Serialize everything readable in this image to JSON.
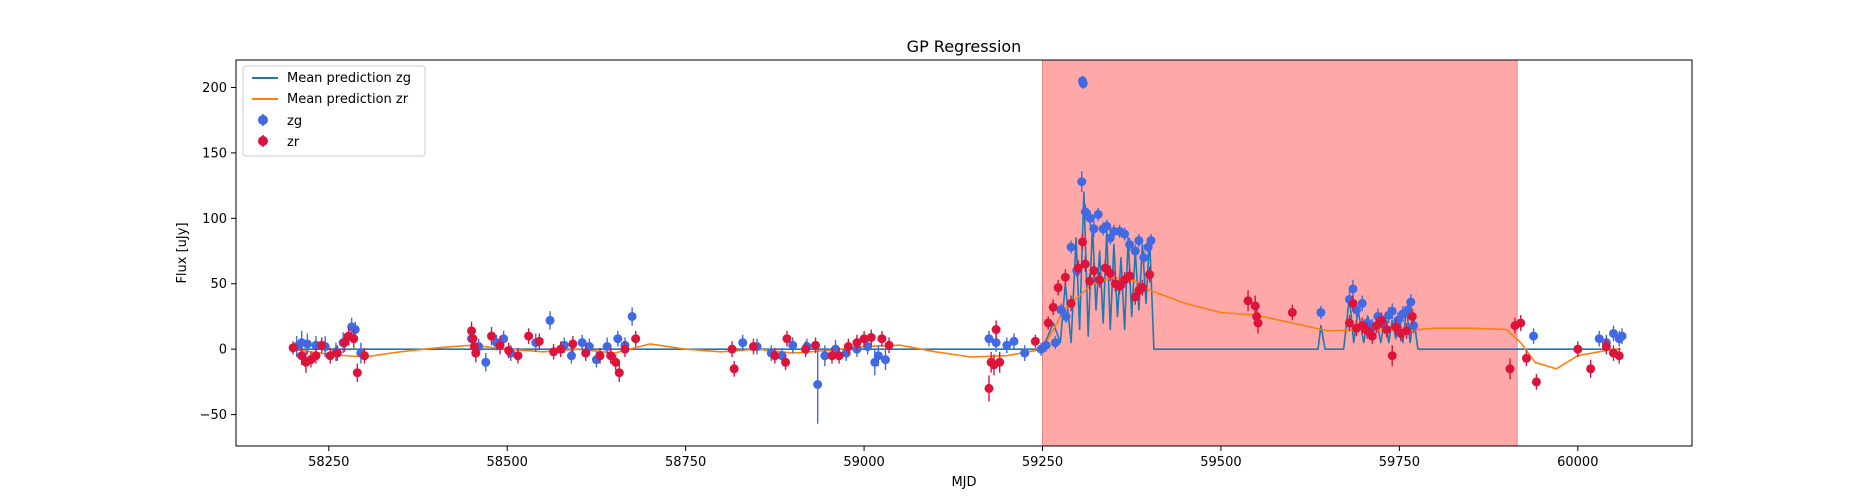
{
  "chart_data": {
    "type": "scatter",
    "title": "GP Regression",
    "xlabel": "MJD",
    "ylabel": "Flux [uJy]",
    "xlim": [
      58120,
      60160
    ],
    "ylim": [
      -74,
      221
    ],
    "xticks": [
      58250,
      58500,
      58750,
      59000,
      59250,
      59500,
      59750,
      60000
    ],
    "yticks": [
      -50,
      0,
      50,
      100,
      150,
      200
    ],
    "grid": false,
    "legend_position": "top-left",
    "highlight_region": {
      "x": [
        59250,
        59915
      ],
      "color": "#ffa8a8"
    },
    "colors": {
      "zg_points": "#4169e1",
      "zr_points": "#dc143c",
      "zg_line": "#1f77b4",
      "zr_line": "#ff7f0e"
    },
    "legend": [
      "Mean prediction zg",
      "Mean prediction zr",
      "zg",
      "zr"
    ],
    "series": [
      {
        "name": "Mean prediction zg",
        "kind": "line",
        "x": [
          58200,
          59250,
          59265,
          59275,
          59282,
          59290,
          59297,
          59302,
          59308,
          59314,
          59320,
          59325,
          59330,
          59335,
          59340,
          59345,
          59350,
          59355,
          59360,
          59365,
          59370,
          59375,
          59380,
          59385,
          59390,
          59395,
          59400,
          59406,
          59636,
          59640,
          59646,
          59655,
          59672,
          59680,
          59686,
          59692,
          59700,
          59706,
          59712,
          59718,
          59724,
          59730,
          59735,
          59740,
          59745,
          59750,
          59755,
          59760,
          59765,
          59770,
          59776,
          60060
        ],
        "y": [
          0,
          0,
          20,
          5,
          50,
          5,
          85,
          15,
          120,
          10,
          95,
          30,
          75,
          20,
          90,
          15,
          80,
          25,
          70,
          15,
          85,
          25,
          75,
          30,
          80,
          35,
          85,
          0,
          0,
          18,
          0,
          0,
          0,
          40,
          5,
          30,
          5,
          25,
          8,
          22,
          5,
          25,
          5,
          22,
          8,
          25,
          5,
          32,
          5,
          25,
          0,
          0
        ]
      },
      {
        "name": "Mean prediction zr",
        "kind": "line",
        "x": [
          58200,
          58250,
          58300,
          58350,
          58400,
          58450,
          58500,
          58550,
          58600,
          58650,
          58700,
          58750,
          58800,
          58850,
          58900,
          58950,
          59000,
          59050,
          59100,
          59150,
          59200,
          59250,
          59280,
          59320,
          59350,
          59380,
          59400,
          59450,
          59500,
          59550,
          59600,
          59650,
          59700,
          59750,
          59800,
          59850,
          59900,
          59920,
          59940,
          59970,
          60000,
          60050,
          60060
        ],
        "y": [
          0,
          -4,
          -6,
          -2,
          1,
          3,
          0,
          -2,
          0,
          -3,
          4,
          0,
          -2,
          0,
          -3,
          -1,
          2,
          3,
          -2,
          -6,
          -5,
          0,
          30,
          50,
          55,
          52,
          45,
          35,
          28,
          26,
          20,
          14,
          15,
          14,
          16,
          16,
          15,
          5,
          -10,
          -15,
          -5,
          0,
          0
        ]
      },
      {
        "name": "zg",
        "kind": "points",
        "points": [
          [
            58205,
            2,
            8
          ],
          [
            58212,
            5,
            9
          ],
          [
            58220,
            4,
            8
          ],
          [
            58232,
            3,
            7
          ],
          [
            58245,
            2,
            8
          ],
          [
            58260,
            -2,
            7
          ],
          [
            58270,
            5,
            8
          ],
          [
            58282,
            17,
            7
          ],
          [
            58287,
            15,
            6
          ],
          [
            58295,
            -3,
            8
          ],
          [
            58450,
            8,
            7
          ],
          [
            58460,
            2,
            6
          ],
          [
            58470,
            -10,
            7
          ],
          [
            58485,
            5,
            6
          ],
          [
            58495,
            8,
            6
          ],
          [
            58505,
            -3,
            6
          ],
          [
            58540,
            5,
            7
          ],
          [
            58560,
            22,
            7
          ],
          [
            58580,
            3,
            6
          ],
          [
            58590,
            -5,
            6
          ],
          [
            58605,
            5,
            6
          ],
          [
            58615,
            2,
            6
          ],
          [
            58625,
            -8,
            6
          ],
          [
            58640,
            2,
            7
          ],
          [
            58655,
            8,
            6
          ],
          [
            58665,
            3,
            6
          ],
          [
            58675,
            25,
            7
          ],
          [
            58830,
            5,
            6
          ],
          [
            58850,
            2,
            6
          ],
          [
            58870,
            -3,
            6
          ],
          [
            58885,
            -5,
            6
          ],
          [
            58900,
            3,
            6
          ],
          [
            58920,
            2,
            6
          ],
          [
            58935,
            -27,
            30
          ],
          [
            58945,
            -5,
            8
          ],
          [
            58960,
            0,
            7
          ],
          [
            58975,
            -3,
            6
          ],
          [
            58990,
            0,
            6
          ],
          [
            59005,
            2,
            6
          ],
          [
            59015,
            -10,
            10
          ],
          [
            59020,
            -5,
            8
          ],
          [
            59030,
            -8,
            8
          ],
          [
            59175,
            8,
            6
          ],
          [
            59185,
            5,
            7
          ],
          [
            59200,
            3,
            6
          ],
          [
            59210,
            6,
            6
          ],
          [
            59225,
            -3,
            6
          ],
          [
            59248,
            0,
            5
          ],
          [
            59255,
            3,
            5
          ],
          [
            59268,
            5,
            5
          ],
          [
            59276,
            30,
            5
          ],
          [
            59283,
            25,
            5
          ],
          [
            59290,
            78,
            5
          ],
          [
            59298,
            60,
            5
          ],
          [
            59305,
            128,
            8
          ],
          [
            59306,
            205,
            4
          ],
          [
            59307,
            203,
            4
          ],
          [
            59310,
            105,
            6
          ],
          [
            59317,
            100,
            6
          ],
          [
            59322,
            92,
            6
          ],
          [
            59328,
            103,
            5
          ],
          [
            59335,
            92,
            5
          ],
          [
            59340,
            94,
            5
          ],
          [
            59345,
            85,
            5
          ],
          [
            59350,
            90,
            5
          ],
          [
            59358,
            90,
            5
          ],
          [
            59365,
            88,
            5
          ],
          [
            59372,
            80,
            5
          ],
          [
            59380,
            75,
            5
          ],
          [
            59385,
            83,
            5
          ],
          [
            59392,
            70,
            5
          ],
          [
            59398,
            78,
            5
          ],
          [
            59402,
            83,
            5
          ],
          [
            59640,
            28,
            5
          ],
          [
            59680,
            38,
            6
          ],
          [
            59685,
            46,
            7
          ],
          [
            59690,
            30,
            6
          ],
          [
            59698,
            35,
            6
          ],
          [
            59705,
            20,
            6
          ],
          [
            59712,
            17,
            6
          ],
          [
            59720,
            25,
            6
          ],
          [
            59728,
            20,
            6
          ],
          [
            59735,
            26,
            6
          ],
          [
            59740,
            29,
            6
          ],
          [
            59748,
            22,
            6
          ],
          [
            59755,
            27,
            6
          ],
          [
            59762,
            30,
            6
          ],
          [
            59766,
            36,
            6
          ],
          [
            59770,
            18,
            6
          ],
          [
            59938,
            10,
            6
          ],
          [
            60030,
            8,
            6
          ],
          [
            60040,
            5,
            6
          ],
          [
            60050,
            12,
            6
          ],
          [
            60058,
            8,
            6
          ],
          [
            60062,
            10,
            6
          ]
        ]
      },
      {
        "name": "zr",
        "kind": "points",
        "points": [
          [
            58200,
            1,
            5
          ],
          [
            58212,
            -5,
            7
          ],
          [
            58218,
            -10,
            8
          ],
          [
            58225,
            -8,
            6
          ],
          [
            58232,
            -5,
            6
          ],
          [
            58240,
            3,
            6
          ],
          [
            58252,
            -5,
            6
          ],
          [
            58262,
            -3,
            6
          ],
          [
            58272,
            5,
            7
          ],
          [
            58278,
            10,
            7
          ],
          [
            58285,
            8,
            7
          ],
          [
            58290,
            -18,
            7
          ],
          [
            58300,
            -5,
            6
          ],
          [
            58450,
            14,
            7
          ],
          [
            58452,
            8,
            7
          ],
          [
            58454,
            2,
            7
          ],
          [
            58456,
            -3,
            7
          ],
          [
            58478,
            10,
            7
          ],
          [
            58490,
            3,
            7
          ],
          [
            58502,
            -1,
            6
          ],
          [
            58515,
            -5,
            6
          ],
          [
            58530,
            10,
            6
          ],
          [
            58545,
            6,
            6
          ],
          [
            58565,
            -2,
            6
          ],
          [
            58575,
            0,
            6
          ],
          [
            58592,
            4,
            6
          ],
          [
            58610,
            -3,
            6
          ],
          [
            58630,
            -5,
            6
          ],
          [
            58645,
            -5,
            6
          ],
          [
            58652,
            -10,
            6
          ],
          [
            58657,
            -18,
            7
          ],
          [
            58665,
            0,
            6
          ],
          [
            58680,
            8,
            6
          ],
          [
            58815,
            0,
            6
          ],
          [
            58818,
            -15,
            6
          ],
          [
            58845,
            2,
            6
          ],
          [
            58875,
            -5,
            6
          ],
          [
            58890,
            -10,
            6
          ],
          [
            58892,
            8,
            6
          ],
          [
            58918,
            0,
            6
          ],
          [
            58932,
            3,
            6
          ],
          [
            58955,
            -5,
            6
          ],
          [
            58965,
            -5,
            6
          ],
          [
            58978,
            2,
            6
          ],
          [
            58990,
            5,
            6
          ],
          [
            59000,
            8,
            6
          ],
          [
            59010,
            9,
            6
          ],
          [
            59025,
            8,
            6
          ],
          [
            59035,
            3,
            6
          ],
          [
            59175,
            -30,
            10
          ],
          [
            59178,
            -10,
            8
          ],
          [
            59182,
            -12,
            8
          ],
          [
            59185,
            15,
            7
          ],
          [
            59190,
            -10,
            8
          ],
          [
            59240,
            6,
            5
          ],
          [
            59258,
            20,
            5
          ],
          [
            59265,
            32,
            6
          ],
          [
            59272,
            47,
            6
          ],
          [
            59282,
            55,
            6
          ],
          [
            59290,
            35,
            6
          ],
          [
            59300,
            62,
            6
          ],
          [
            59306,
            82,
            6
          ],
          [
            59310,
            65,
            6
          ],
          [
            59316,
            52,
            6
          ],
          [
            59322,
            60,
            6
          ],
          [
            59330,
            53,
            6
          ],
          [
            59338,
            62,
            6
          ],
          [
            59345,
            58,
            6
          ],
          [
            59352,
            50,
            6
          ],
          [
            59358,
            48,
            6
          ],
          [
            59365,
            53,
            6
          ],
          [
            59372,
            56,
            6
          ],
          [
            59380,
            40,
            6
          ],
          [
            59385,
            45,
            6
          ],
          [
            59390,
            47,
            6
          ],
          [
            59400,
            57,
            6
          ],
          [
            59538,
            37,
            8
          ],
          [
            59548,
            33,
            8
          ],
          [
            59550,
            25,
            8
          ],
          [
            59552,
            20,
            8
          ],
          [
            59600,
            28,
            6
          ],
          [
            59680,
            20,
            6
          ],
          [
            59685,
            35,
            6
          ],
          [
            59690,
            16,
            6
          ],
          [
            59698,
            18,
            6
          ],
          [
            59705,
            14,
            6
          ],
          [
            59712,
            10,
            6
          ],
          [
            59718,
            18,
            6
          ],
          [
            59725,
            22,
            6
          ],
          [
            59732,
            15,
            6
          ],
          [
            59740,
            -5,
            8
          ],
          [
            59745,
            17,
            6
          ],
          [
            59752,
            12,
            6
          ],
          [
            59760,
            14,
            6
          ],
          [
            59768,
            25,
            6
          ],
          [
            59905,
            -15,
            8
          ],
          [
            59912,
            18,
            6
          ],
          [
            59920,
            20,
            6
          ],
          [
            59928,
            -7,
            6
          ],
          [
            59942,
            -25,
            6
          ],
          [
            60000,
            0,
            6
          ],
          [
            60018,
            -15,
            7
          ],
          [
            60040,
            2,
            6
          ],
          [
            60050,
            -3,
            6
          ],
          [
            60058,
            -5,
            6
          ]
        ]
      }
    ]
  }
}
